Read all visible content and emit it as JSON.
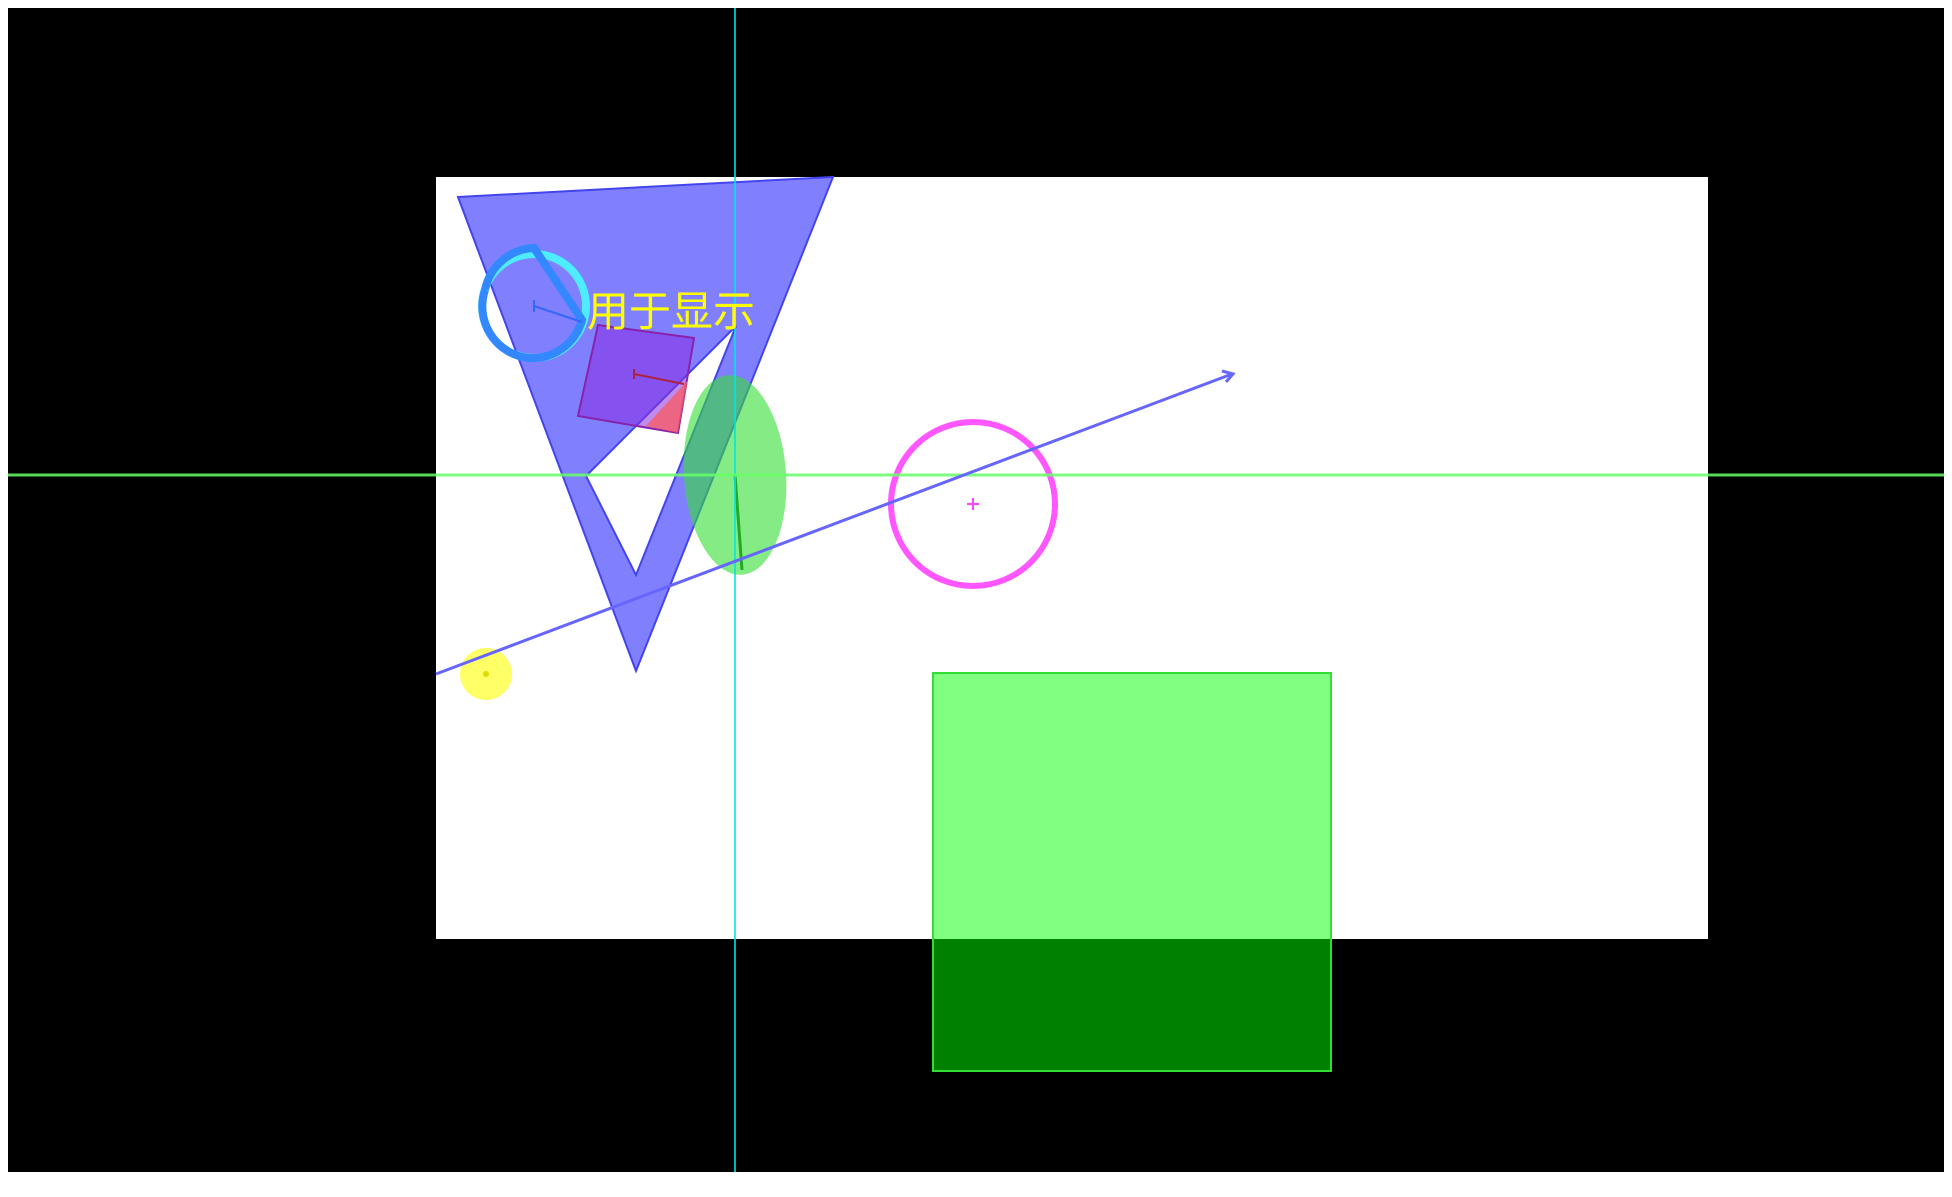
{
  "canvas": {
    "label": "用于显示"
  },
  "colors": {
    "frame": "#000000",
    "viewport": "#ffffff",
    "axis_vertical": "#00e5e5",
    "axis_horizontal": "#66ff66",
    "triangle": "#5555ff",
    "rectangle": "#00e000",
    "rectangle_dark": "#008000",
    "ellipse": "#33dd33",
    "ring": "#ff44ff",
    "arc": "#3388ff",
    "square": "#8822aa",
    "dot": "#ffff33",
    "label": "#ffff00",
    "arrow": "#7777ff"
  },
  "shapes": [
    "triangle-hollow",
    "rectangle",
    "ellipse",
    "ring",
    "arc",
    "rotated-square",
    "dot",
    "arrow-line"
  ]
}
